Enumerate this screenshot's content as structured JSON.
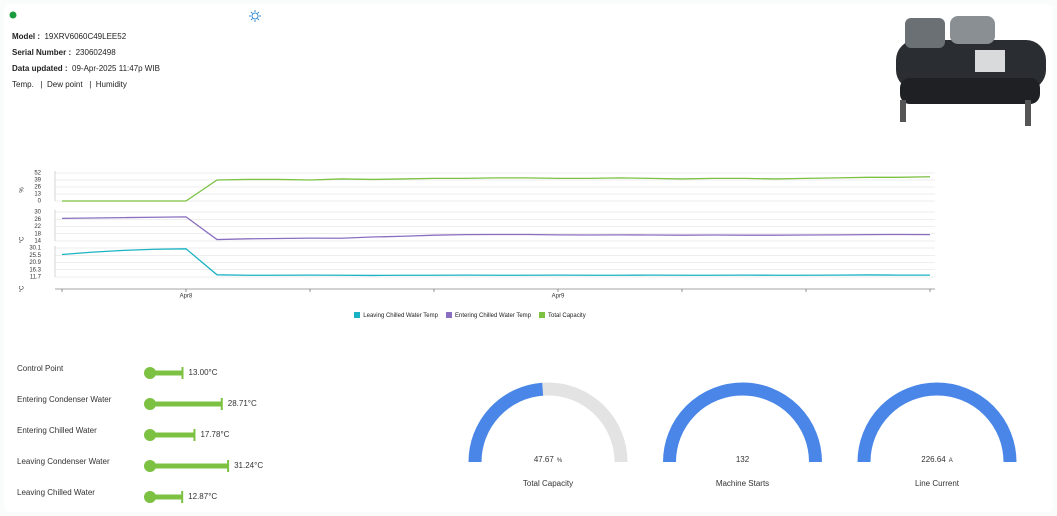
{
  "header": {
    "model_label": "Model :",
    "model": "19XRV6060C49LEE52",
    "serial_label": "Serial Number :",
    "serial": "230602498",
    "updated_label": "Data updated :",
    "updated": "09-Apr-2025 11:47p WIB",
    "links": [
      "Temp.",
      "Dew point",
      "Humidity"
    ]
  },
  "chart": {
    "categories": [
      null,
      null,
      null,
      null,
      "Apr8",
      null,
      null,
      null,
      null,
      null,
      null,
      null,
      null,
      null,
      null,
      null,
      "Apr9",
      null,
      null,
      null,
      null,
      null,
      null,
      null,
      null,
      null,
      null,
      null,
      null
    ],
    "panels": [
      {
        "unit": "%",
        "ylim": [
          0,
          52
        ],
        "yticks": [
          0,
          13,
          26,
          39,
          52
        ],
        "series": {
          "name": "Total Capacity",
          "color": "#7cc142",
          "values": [
            0,
            0,
            0,
            0,
            0,
            39,
            40,
            40,
            39,
            41,
            40,
            41,
            42,
            42,
            43,
            43,
            42,
            42,
            43,
            42,
            41,
            42,
            42,
            41,
            42,
            43,
            44,
            44,
            45
          ]
        }
      },
      {
        "unit": "°C",
        "ylim": [
          14,
          30
        ],
        "yticks": [
          14,
          18,
          22,
          26,
          30
        ],
        "series": {
          "name": "Entering Chilled Water Temp",
          "color": "#8a6fc0",
          "values": [
            26.5,
            26.7,
            26.9,
            27.1,
            27.3,
            14.8,
            15.2,
            15.4,
            15.6,
            15.5,
            16.2,
            16.6,
            17.2,
            17.5,
            17.6,
            17.6,
            17.4,
            17.3,
            17.4,
            17.3,
            17.2,
            17.3,
            17.2,
            17.2,
            17.3,
            17.4,
            17.5,
            17.6,
            17.5
          ]
        }
      },
      {
        "unit": "°C",
        "ylim": [
          11.7,
          30.1
        ],
        "yticks": [
          11.7,
          16.3,
          20.9,
          25.5,
          30.1
        ],
        "series": {
          "name": "Leaving Chilled Water Temp",
          "color": "#1bb3c4",
          "values": [
            26.0,
            27.5,
            28.6,
            29.3,
            29.6,
            13.1,
            12.8,
            12.8,
            12.9,
            12.8,
            12.7,
            12.8,
            12.8,
            12.9,
            12.8,
            12.8,
            12.9,
            12.8,
            12.8,
            12.9,
            12.8,
            12.8,
            12.9,
            12.8,
            12.8,
            12.9,
            13.0,
            12.9,
            12.9
          ]
        }
      }
    ]
  },
  "metrics": [
    {
      "name": "Control Point",
      "value": 13.0,
      "label": "13.00°C"
    },
    {
      "name": "Entering Condenser Water",
      "value": 28.71,
      "label": "28.71°C"
    },
    {
      "name": "Entering Chilled Water",
      "value": 17.78,
      "label": "17.78°C"
    },
    {
      "name": "Leaving Condenser Water",
      "value": 31.24,
      "label": "31.24°C"
    },
    {
      "name": "Leaving Chilled Water",
      "value": 12.87,
      "label": "12.87°C"
    }
  ],
  "gauges": [
    {
      "name": "Total Capacity",
      "value": 47.67,
      "unit": "%"
    },
    {
      "name": "Machine Starts",
      "value": 132
    },
    {
      "name": "Line Current",
      "value": 226.64,
      "unit": "A"
    }
  ]
}
